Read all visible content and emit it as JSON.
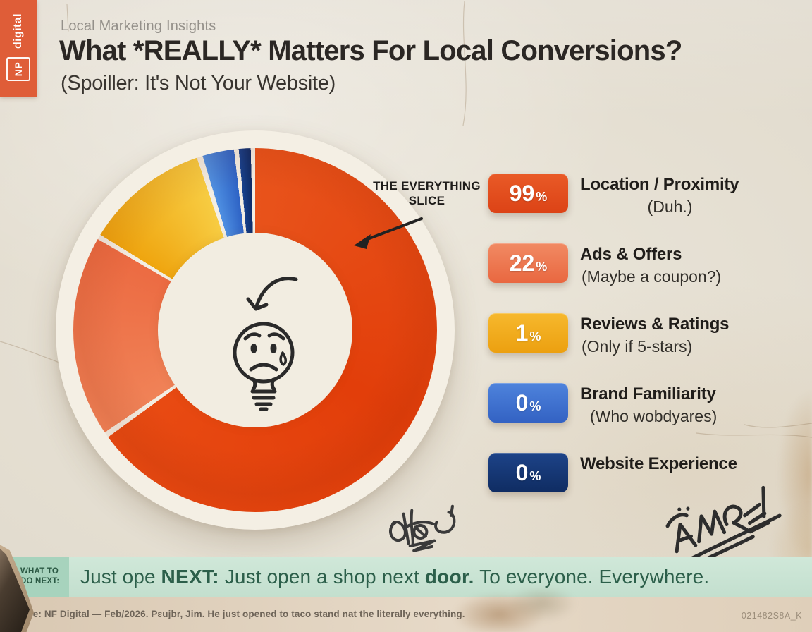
{
  "brand": {
    "np": "NP",
    "digital": "digital"
  },
  "header": {
    "kicker": "Local Marketing Insights",
    "title": "What *REALLY* Matters For Local Conversions?",
    "subtitle": "(Spoiller: It's Not Your Website)"
  },
  "chart_data": {
    "type": "pie",
    "donut": true,
    "title": "What *REALLY* Matters For Local Conversions?",
    "kicker": "Local Marketing Insights",
    "subtitle": "(Spoiller: It's Not Your Website)",
    "categories": [
      "Location / Proximity",
      "Ads & Offers",
      "Reviews & Ratings",
      "Brand Familiarity",
      "Website Experience"
    ],
    "stated_values_pct": [
      99,
      22,
      1,
      0,
      0
    ],
    "gap_color": "#F3EEE3",
    "center_doodle": "sad-crying-lightbulb",
    "annotation": {
      "line1": "THE EVERYTHING",
      "line2": "SLICE"
    },
    "visual_slices": [
      {
        "label": "Location / Proximity",
        "stated_pct": 99,
        "start_deg": 0,
        "end_deg": 234,
        "color_stops": [
          {
            "color": "#E8531B",
            "deg": 0
          },
          {
            "color": "#E23E0A",
            "deg": 120
          },
          {
            "color": "#E84A12",
            "deg": 234
          }
        ]
      },
      {
        "label": "Ads & Offers",
        "stated_pct": 22,
        "start_deg": 235.8,
        "end_deg": 300,
        "color_stops": [
          {
            "color": "#F08257",
            "deg": 235.8
          },
          {
            "color": "#EC6B42",
            "deg": 300
          }
        ]
      },
      {
        "label": "Reviews & Ratings",
        "stated_pct": 1,
        "start_deg": 301.6,
        "end_deg": 341.3,
        "color_stops": [
          {
            "color": "#EFA50F",
            "deg": 301.6
          },
          {
            "color": "#F7CC42",
            "deg": 341.3
          }
        ]
      },
      {
        "label": "Brand Familiarity",
        "stated_pct": 0,
        "start_deg": 343.2,
        "end_deg": 353.3,
        "color_stops": [
          {
            "color": "#4F90E2",
            "deg": 343.2
          },
          {
            "color": "#2E63C5",
            "deg": 353.3
          }
        ]
      },
      {
        "label": "Website Experience",
        "stated_pct": 0,
        "start_deg": 354.8,
        "end_deg": 358.6,
        "color_stops": [
          {
            "color": "#16418E",
            "deg": 354.8
          },
          {
            "color": "#0D2B66",
            "deg": 358.6
          }
        ]
      }
    ]
  },
  "legend": {
    "percent_symbol": "%",
    "items": [
      {
        "pct": "99",
        "title": "Location / Proximity",
        "subtitle": "(Duh.)",
        "badge_top": "#E95A27",
        "badge_bottom": "#DC4316"
      },
      {
        "pct": "22",
        "title": "Ads & Offers",
        "subtitle": "(Maybe a coupon?)",
        "badge_top": "#F18A63",
        "badge_bottom": "#E96740"
      },
      {
        "pct": "1",
        "title": "Reviews & Ratings",
        "subtitle": "(Only if 5-stars)",
        "badge_top": "#F6B82D",
        "badge_bottom": "#ECA010"
      },
      {
        "pct": "0",
        "title": "Brand Familiarity",
        "subtitle": "(Who wobdyares)",
        "badge_top": "#4E83DC",
        "badge_bottom": "#3362C3"
      },
      {
        "pct": "0",
        "title": "Website Experience",
        "subtitle": "",
        "badge_top": "#1D4388",
        "badge_bottom": "#0F2C62"
      }
    ]
  },
  "next_bar": {
    "label_line1": "WHAT TO",
    "label_line2": "DO NEXT:",
    "segments": [
      {
        "text": "Just ope ",
        "bold": false
      },
      {
        "text": "NEXT:",
        "bold": true
      },
      {
        "text": " Just open a shop next ",
        "bold": false
      },
      {
        "text": "door.",
        "bold": true
      },
      {
        "text": " To everyone. Everywhere.",
        "bold": false
      }
    ]
  },
  "footer": {
    "source": "Source: NF Digital — Feb/2026. Pɛujbr, Jim. He just opened to taco stand nat the literally everything.",
    "code": "021482S8A_K"
  },
  "decorations": {
    "graffiti_left": "illegible-marker-tag",
    "graffiti_right": "illegible-marker-tag"
  }
}
